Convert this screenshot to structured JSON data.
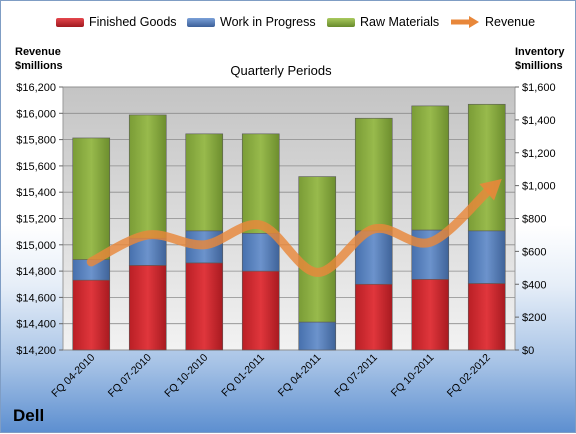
{
  "legend": [
    {
      "label": "Finished Goods",
      "color": "#c0272d"
    },
    {
      "label": "Work in Progress",
      "color": "#4f78b4"
    },
    {
      "label": "Raw Materials",
      "color": "#84a83e"
    },
    {
      "label": "Revenue",
      "color": "#e8873a"
    }
  ],
  "left_axis_title_line1": "Revenue",
  "left_axis_title_line2": "$millions",
  "right_axis_title_line1": "Inventory",
  "right_axis_title_line2": "$millions",
  "plot_title": "Quarterly Periods",
  "brand": "Dell",
  "chart_data": {
    "type": "bar",
    "stacked": true,
    "categories": [
      "FQ 04-2010",
      "FQ 07-2010",
      "FQ 10-2010",
      "FQ 01-2011",
      "FQ 04-2011",
      "FQ 07-2011",
      "FQ 10-2011",
      "FQ 02-2012"
    ],
    "series": [
      {
        "name": "Finished Goods",
        "axis": "right",
        "color": "#c0272d",
        "values": [
          425,
          515,
          530,
          480,
          0,
          400,
          430,
          405
        ]
      },
      {
        "name": "Work in Progress",
        "axis": "right",
        "color": "#4f78b4",
        "values": [
          125,
          165,
          195,
          230,
          170,
          325,
          300,
          320
        ]
      },
      {
        "name": "Raw Materials",
        "axis": "right",
        "color": "#84a83e",
        "values": [
          740,
          750,
          590,
          605,
          885,
          685,
          755,
          770
        ]
      },
      {
        "name": "Revenue",
        "axis": "left",
        "type": "line",
        "color": "#e8873a",
        "values": [
          14870,
          15075,
          15000,
          15150,
          14790,
          15120,
          15020,
          15400
        ]
      }
    ],
    "left_axis": {
      "ylim": [
        14200,
        16200
      ],
      "ticks": [
        "$14,200",
        "$14,400",
        "$14,600",
        "$14,800",
        "$15,000",
        "$15,200",
        "$15,400",
        "$15,600",
        "$15,800",
        "$16,000",
        "$16,200"
      ]
    },
    "right_axis": {
      "ylim": [
        0,
        1600
      ],
      "ticks": [
        "$0",
        "$200",
        "$400",
        "$600",
        "$800",
        "$1,000",
        "$1,200",
        "$1,400",
        "$1,600"
      ]
    },
    "grid": true
  }
}
